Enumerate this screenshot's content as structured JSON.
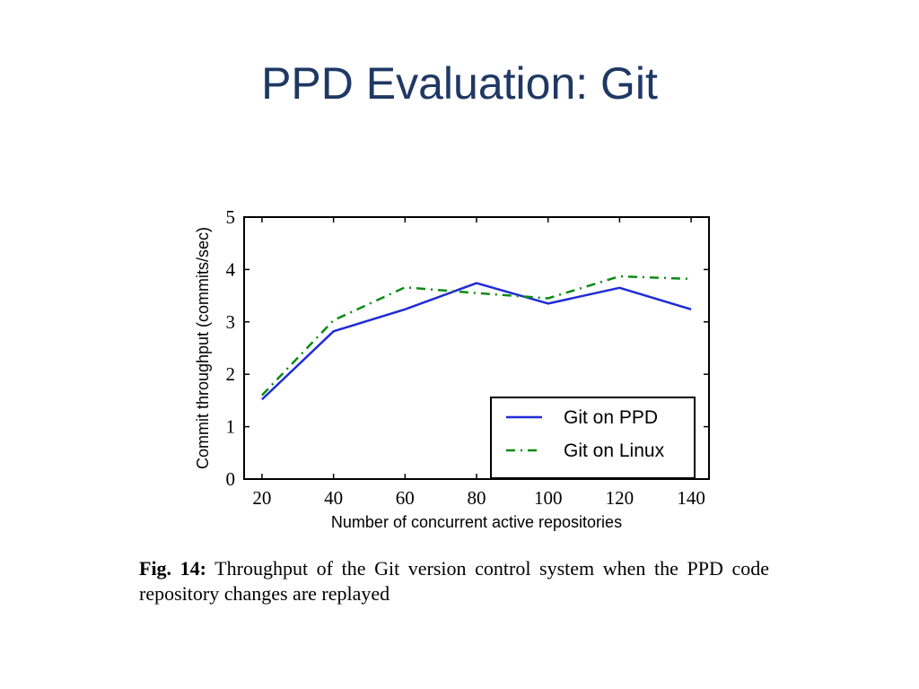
{
  "slide": {
    "title": "PPD Evaluation: Git"
  },
  "caption": {
    "fig_label": "Fig. 14:",
    "text": " Throughput of the Git version control system when the PPD code repository changes are replayed"
  },
  "colors": {
    "title": "#1f3864",
    "series_ppd": "#1f2bd6",
    "series_linux": "#0a8a14"
  },
  "chart_data": {
    "type": "line",
    "xlabel": "Number of concurrent active repositories",
    "ylabel": "Commit throughput (commits/sec)",
    "xlim": [
      15,
      145
    ],
    "ylim": [
      0,
      5
    ],
    "xticks": [
      20,
      40,
      60,
      80,
      100,
      120,
      140
    ],
    "yticks": [
      0,
      1,
      2,
      3,
      4,
      5
    ],
    "legend_position": "lower-right",
    "series": [
      {
        "name": "Git on PPD",
        "style": "solid",
        "x": [
          20,
          40,
          60,
          80,
          100,
          120,
          140
        ],
        "y": [
          1.52,
          2.82,
          3.24,
          3.74,
          3.35,
          3.65,
          3.24
        ]
      },
      {
        "name": "Git on Linux",
        "style": "dashdot",
        "x": [
          20,
          40,
          60,
          80,
          100,
          120,
          140
        ],
        "y": [
          1.6,
          3.03,
          3.66,
          3.55,
          3.45,
          3.87,
          3.82
        ]
      }
    ]
  }
}
